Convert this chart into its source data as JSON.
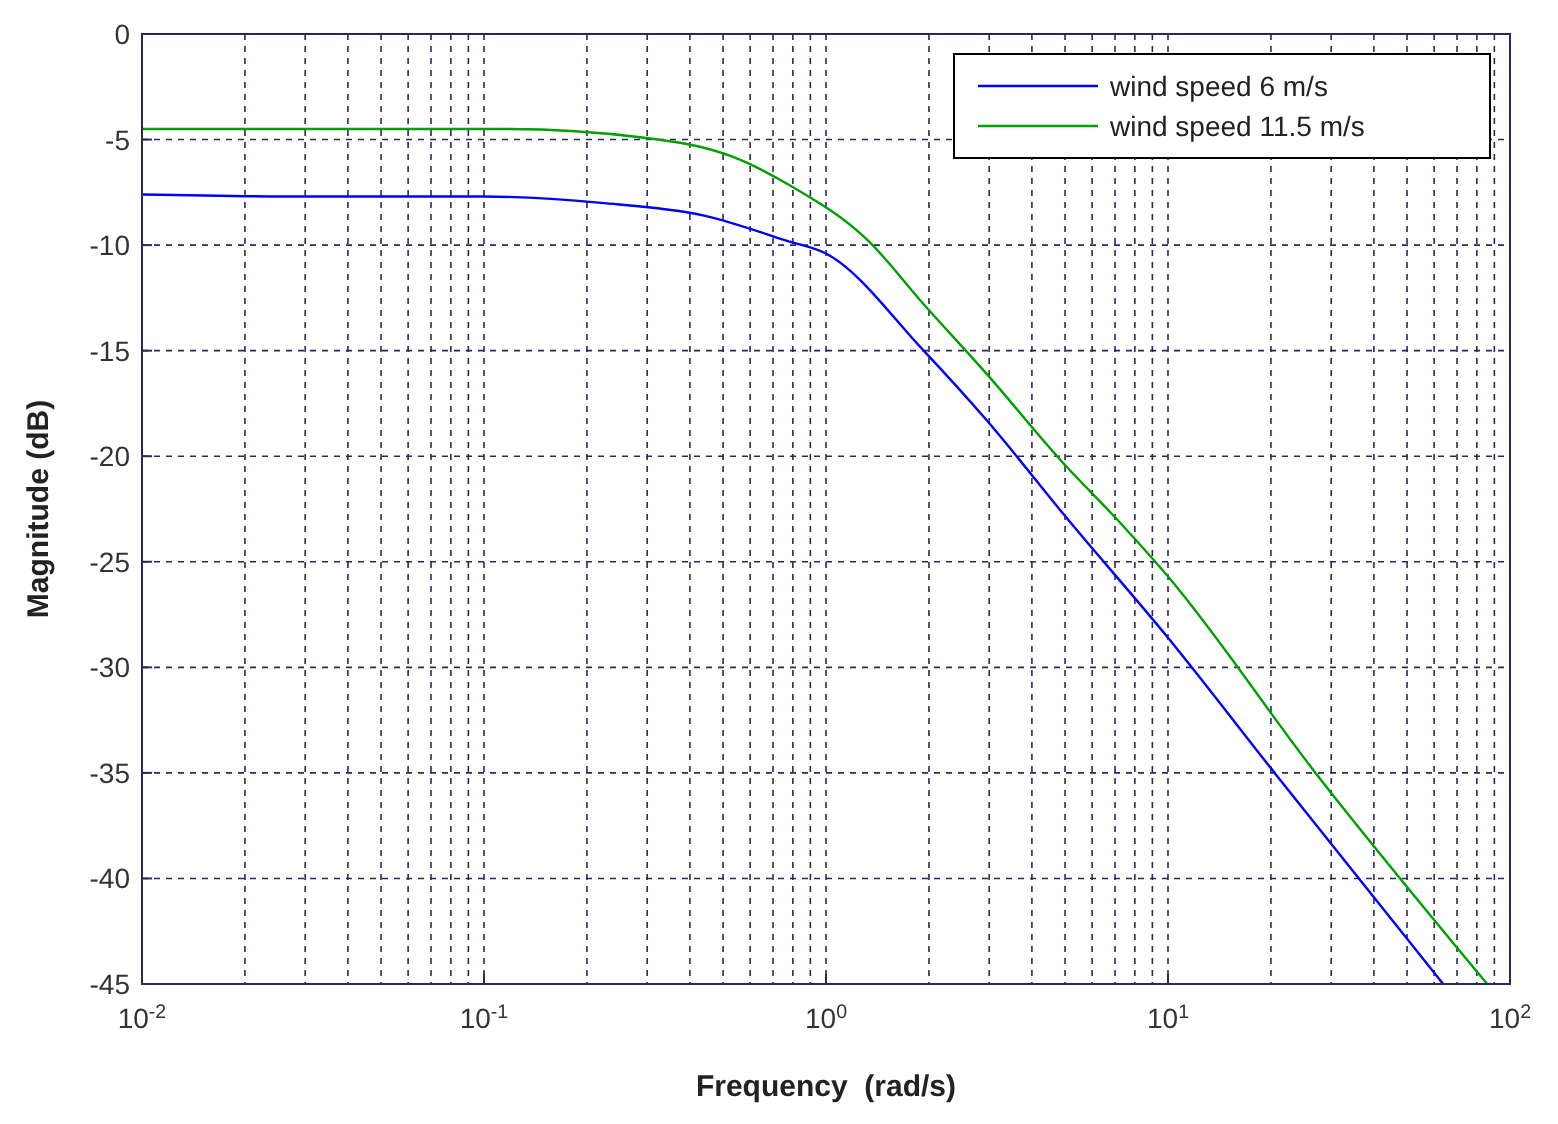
{
  "chart_data": {
    "type": "line",
    "xlabel": "Frequency  (rad/s)",
    "ylabel": "Magnitude (dB)",
    "log": "x",
    "grid": true,
    "legend": "top right",
    "line_style": "solid",
    "marker": "none",
    "xlim": [
      0.01,
      100
    ],
    "ylim": [
      -45,
      0
    ],
    "xticks": [
      {
        "value": 0.01,
        "label": "10$^{-2}$"
      },
      {
        "value": 0.1,
        "label": "10$^{-1}$"
      },
      {
        "value": 1,
        "label": "10$^{0}$"
      },
      {
        "value": 10,
        "label": "10$^{1}$"
      },
      {
        "value": 100,
        "label": "10$^{2}$"
      }
    ],
    "yticks": [
      -45,
      -40,
      -35,
      -30,
      -25,
      -20,
      -15,
      -10,
      -5,
      0
    ],
    "series": [
      {
        "name": "wind speed 6 m/s",
        "color": "#0000ff",
        "x": [
          0.01,
          0.03,
          0.1,
          0.22,
          0.44,
          0.77,
          1,
          1.93,
          2.95,
          5.1,
          10,
          20.5,
          63.8
        ],
        "values": [
          -7.6,
          -7.7,
          -7.7,
          -8.0,
          -8.6,
          -9.8,
          -10.4,
          -15,
          -18.3,
          -23,
          -28.6,
          -35,
          -45
        ]
      },
      {
        "name": "wind speed 11.5 m/s",
        "color": "#00a000",
        "x": [
          0.01,
          0.115,
          0.29,
          0.53,
          0.79,
          1.33,
          1.93,
          2.95,
          4.86,
          7.1,
          10,
          27,
          85.8
        ],
        "values": [
          -4.5,
          -4.5,
          -4.9,
          -5.8,
          -7.2,
          -9.8,
          -12.8,
          -16.1,
          -20.2,
          -23,
          -25.7,
          -35,
          -45
        ]
      }
    ]
  }
}
